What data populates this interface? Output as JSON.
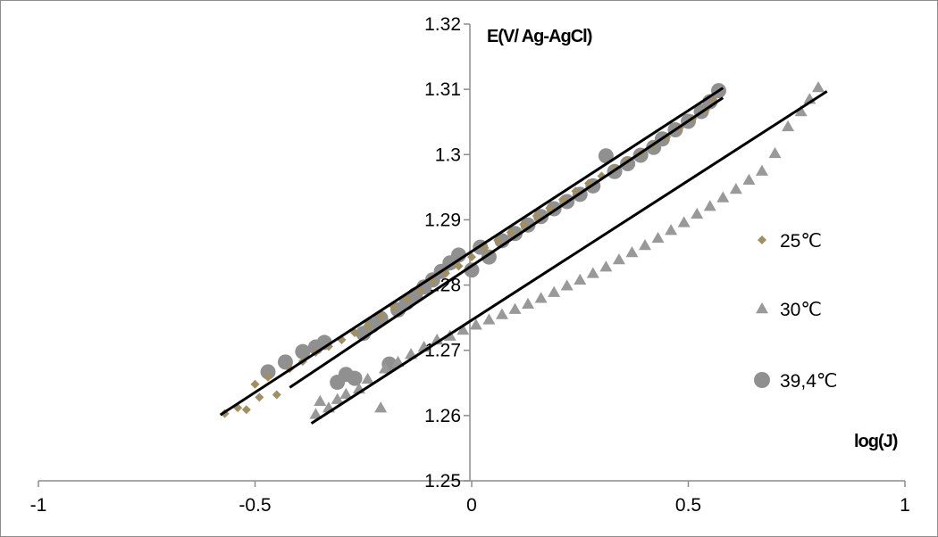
{
  "chart_data": {
    "type": "scatter",
    "title": "",
    "xlabel": "log(J)",
    "ylabel": "E(V/ Ag-AgCl)",
    "xlim": [
      -1,
      1
    ],
    "ylim": [
      1.25,
      1.32
    ],
    "x_ticks": [
      -1,
      -0.5,
      0,
      0.5,
      1
    ],
    "x_tick_labels": [
      "-1",
      "-0.5",
      "0",
      "0.5",
      "1"
    ],
    "y_ticks": [
      1.25,
      1.26,
      1.27,
      1.28,
      1.29,
      1.3,
      1.31,
      1.32
    ],
    "y_tick_labels": [
      "1.25",
      "1.26",
      "1.27",
      "1.28",
      "1.29",
      "1.3",
      "1.31",
      "1.32"
    ],
    "grid": false,
    "legend_position": "right",
    "series": [
      {
        "name": "25℃",
        "marker": "diamond",
        "color": "#a09060",
        "points": [
          [
            -0.57,
            1.2603
          ],
          [
            -0.54,
            1.2612
          ],
          [
            -0.52,
            1.2609
          ],
          [
            -0.5,
            1.2648
          ],
          [
            -0.49,
            1.2628
          ],
          [
            -0.47,
            1.2659
          ],
          [
            -0.45,
            1.2632
          ],
          [
            -0.42,
            1.2672
          ],
          [
            -0.39,
            1.2683
          ],
          [
            -0.36,
            1.2697
          ],
          [
            -0.33,
            1.2706
          ],
          [
            -0.3,
            1.2716
          ],
          [
            -0.27,
            1.2727
          ],
          [
            -0.24,
            1.2738
          ],
          [
            -0.21,
            1.2753
          ],
          [
            -0.18,
            1.2767
          ],
          [
            -0.15,
            1.2779
          ],
          [
            -0.12,
            1.2793
          ],
          [
            -0.09,
            1.2806
          ],
          [
            -0.06,
            1.2818
          ],
          [
            -0.03,
            1.2829
          ],
          [
            0.0,
            1.2843
          ],
          [
            0.03,
            1.2857
          ],
          [
            0.06,
            1.2869
          ],
          [
            0.09,
            1.2881
          ],
          [
            0.12,
            1.2893
          ],
          [
            0.15,
            1.2906
          ],
          [
            0.18,
            1.2918
          ],
          [
            0.21,
            1.2931
          ],
          [
            0.24,
            1.2944
          ],
          [
            0.27,
            1.2956
          ],
          [
            0.3,
            1.2967
          ],
          [
            0.33,
            1.2979
          ],
          [
            0.36,
            1.2991
          ],
          [
            0.39,
            1.3003
          ],
          [
            0.42,
            1.3015
          ],
          [
            0.45,
            1.3027
          ],
          [
            0.48,
            1.3041
          ],
          [
            0.51,
            1.3055
          ],
          [
            0.54,
            1.3068
          ],
          [
            0.56,
            1.3082
          ]
        ]
      },
      {
        "name": "30℃",
        "marker": "triangle",
        "color": "#999999",
        "points": [
          [
            -0.36,
            1.2602
          ],
          [
            -0.35,
            1.2622
          ],
          [
            -0.33,
            1.2612
          ],
          [
            -0.31,
            1.2625
          ],
          [
            -0.29,
            1.2633
          ],
          [
            -0.26,
            1.2641
          ],
          [
            -0.24,
            1.2656
          ],
          [
            -0.21,
            1.2612
          ],
          [
            -0.2,
            1.2672
          ],
          [
            -0.17,
            1.2682
          ],
          [
            -0.14,
            1.2694
          ],
          [
            -0.11,
            1.2705
          ],
          [
            -0.08,
            1.2716
          ],
          [
            -0.05,
            1.2722
          ],
          [
            -0.02,
            1.2731
          ],
          [
            0.01,
            1.2739
          ],
          [
            0.04,
            1.2747
          ],
          [
            0.07,
            1.2755
          ],
          [
            0.1,
            1.2763
          ],
          [
            0.13,
            1.2771
          ],
          [
            0.16,
            1.278
          ],
          [
            0.19,
            1.2789
          ],
          [
            0.22,
            1.2799
          ],
          [
            0.25,
            1.2808
          ],
          [
            0.28,
            1.2818
          ],
          [
            0.31,
            1.2828
          ],
          [
            0.34,
            1.2839
          ],
          [
            0.37,
            1.285
          ],
          [
            0.4,
            1.2861
          ],
          [
            0.43,
            1.2872
          ],
          [
            0.46,
            1.2884
          ],
          [
            0.49,
            1.2896
          ],
          [
            0.52,
            1.2909
          ],
          [
            0.55,
            1.2921
          ],
          [
            0.58,
            1.2934
          ],
          [
            0.61,
            1.2947
          ],
          [
            0.64,
            1.2961
          ],
          [
            0.67,
            1.2975
          ],
          [
            0.7,
            1.3002
          ],
          [
            0.73,
            1.3043
          ],
          [
            0.76,
            1.3066
          ],
          [
            0.78,
            1.3085
          ],
          [
            0.8,
            1.3103
          ]
        ]
      },
      {
        "name": "39,4℃",
        "marker": "circle",
        "color": "#909090",
        "points": [
          [
            -0.47,
            1.2667
          ],
          [
            -0.43,
            1.2682
          ],
          [
            -0.39,
            1.2698
          ],
          [
            -0.36,
            1.2705
          ],
          [
            -0.34,
            1.2712
          ],
          [
            -0.31,
            1.2651
          ],
          [
            -0.29,
            1.2663
          ],
          [
            -0.27,
            1.2657
          ],
          [
            -0.25,
            1.2726
          ],
          [
            -0.23,
            1.2738
          ],
          [
            -0.21,
            1.2749
          ],
          [
            -0.19,
            1.2679
          ],
          [
            -0.17,
            1.2762
          ],
          [
            -0.15,
            1.2773
          ],
          [
            -0.13,
            1.2785
          ],
          [
            -0.11,
            1.2797
          ],
          [
            -0.09,
            1.2808
          ],
          [
            -0.07,
            1.2821
          ],
          [
            -0.05,
            1.2834
          ],
          [
            -0.03,
            1.2846
          ],
          [
            0.0,
            1.2823
          ],
          [
            0.02,
            1.2858
          ],
          [
            0.04,
            1.2843
          ],
          [
            0.07,
            1.2868
          ],
          [
            0.1,
            1.2879
          ],
          [
            0.13,
            1.2892
          ],
          [
            0.16,
            1.2905
          ],
          [
            0.19,
            1.2917
          ],
          [
            0.22,
            1.2928
          ],
          [
            0.25,
            1.2939
          ],
          [
            0.28,
            1.2952
          ],
          [
            0.31,
            1.2998
          ],
          [
            0.33,
            1.2974
          ],
          [
            0.36,
            1.2986
          ],
          [
            0.39,
            1.2999
          ],
          [
            0.42,
            1.3011
          ],
          [
            0.44,
            1.3024
          ],
          [
            0.47,
            1.3038
          ],
          [
            0.5,
            1.3051
          ],
          [
            0.53,
            1.3066
          ],
          [
            0.55,
            1.3081
          ],
          [
            0.57,
            1.3098
          ]
        ]
      }
    ],
    "trendlines": [
      {
        "series": "25℃",
        "x": [
          -0.58,
          0.58
        ],
        "y": [
          1.2601,
          1.3102
        ]
      },
      {
        "series": "30℃",
        "x": [
          -0.37,
          0.82
        ],
        "y": [
          1.2588,
          1.3097
        ]
      },
      {
        "series": "39,4℃",
        "x": [
          -0.42,
          0.58
        ],
        "y": [
          1.2643,
          1.3087
        ]
      }
    ]
  }
}
